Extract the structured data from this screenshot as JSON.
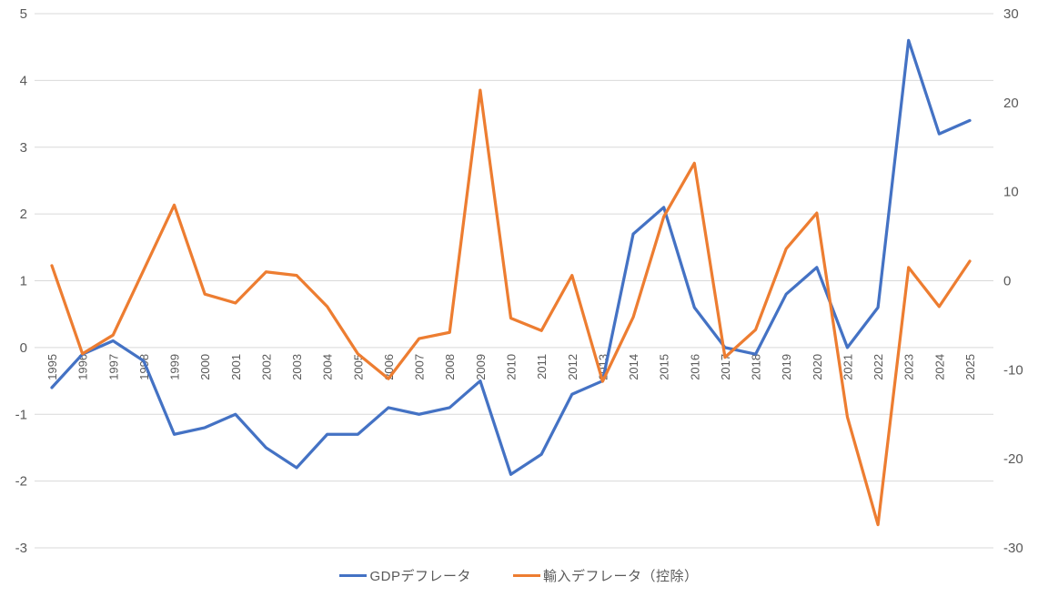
{
  "chart_data": {
    "type": "line",
    "title": "",
    "x": [
      "1995",
      "1996",
      "1997",
      "1998",
      "1999",
      "2000",
      "2001",
      "2002",
      "2003",
      "2004",
      "2005",
      "2006",
      "2007",
      "2008",
      "2009",
      "2010",
      "2011",
      "2012",
      "2013",
      "2014",
      "2015",
      "2016",
      "2017",
      "2018",
      "2019",
      "2020",
      "2021",
      "2022",
      "2023",
      "2024",
      "2025"
    ],
    "series": [
      {
        "name": "GDPデフレータ",
        "axis": "left",
        "color": "#4472C4",
        "values": [
          -0.6,
          -0.1,
          0.1,
          -0.2,
          -1.3,
          -1.2,
          -1.0,
          -1.5,
          -1.8,
          -1.3,
          -1.3,
          -0.9,
          -1.0,
          -0.9,
          -0.5,
          -1.9,
          -1.6,
          -0.7,
          -0.5,
          1.7,
          2.1,
          0.6,
          0.0,
          -0.1,
          0.8,
          1.2,
          0.0,
          0.6,
          4.6,
          3.2,
          3.4
        ]
      },
      {
        "name": "輸入デフレータ（控除）",
        "axis": "right",
        "color": "#ED7D31",
        "values": [
          1.7,
          -8.2,
          -6.1,
          1.2,
          8.5,
          -1.5,
          -2.5,
          1.0,
          0.6,
          -2.9,
          -8.2,
          -11.0,
          -6.5,
          -5.8,
          21.4,
          -4.2,
          -5.6,
          0.6,
          -11.3,
          -4.1,
          7.2,
          13.2,
          -8.6,
          -5.5,
          3.6,
          7.6,
          -15.3,
          -27.4,
          1.5,
          -2.9,
          2.2
        ]
      }
    ],
    "left_axis": {
      "min": -3,
      "max": 5,
      "ticks": [
        "5",
        "4",
        "3",
        "2",
        "1",
        "0",
        "-1",
        "-2",
        "-3"
      ]
    },
    "right_axis": {
      "min": -30,
      "max": 30,
      "ticks": [
        "30",
        "20",
        "10",
        "0",
        "-10",
        "-20",
        "-30"
      ]
    },
    "grid": "horizontal",
    "legend_position": "bottom",
    "colors": {
      "gridline": "#D9D9D9",
      "tick_label": "#595959",
      "background": "#FFFFFF"
    }
  }
}
